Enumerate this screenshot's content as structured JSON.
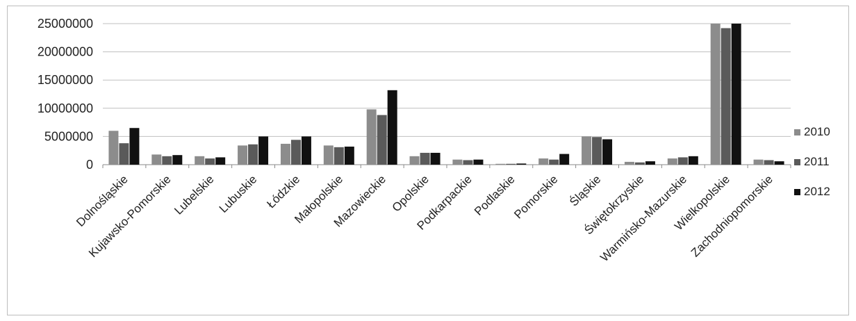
{
  "chart_data": {
    "type": "bar",
    "title": "",
    "xlabel": "",
    "ylabel": "",
    "ylim": [
      0,
      25000000
    ],
    "yticks": [
      0,
      5000000,
      10000000,
      15000000,
      20000000,
      25000000
    ],
    "ytick_labels": [
      "0",
      "5000000",
      "10000000",
      "15000000",
      "20000000",
      "25000000"
    ],
    "grid": true,
    "legend_position": "right",
    "categories": [
      "Dolnośląskie",
      "Kujawsko-Pomorskie",
      "Lubelskie",
      "Lubuskie",
      "Łódzkie",
      "Małopolskie",
      "Mazowieckie",
      "Opolskie",
      "Podkarpackie",
      "Podlaskie",
      "Pomorskie",
      "Śląskie",
      "Świętokrzyskie",
      "Warmińsko-Mazurskie",
      "Wielkopolskie",
      "Zachodniopomorskie"
    ],
    "series": [
      {
        "name": "2010",
        "color": "#8c8c8c",
        "values": [
          6000000,
          1800000,
          1500000,
          3400000,
          3700000,
          3400000,
          9800000,
          1500000,
          900000,
          150000,
          1100000,
          5000000,
          500000,
          1100000,
          25000000,
          900000
        ]
      },
      {
        "name": "2011",
        "color": "#5a5a5a",
        "values": [
          3800000,
          1500000,
          1100000,
          3600000,
          4400000,
          3100000,
          8800000,
          2100000,
          800000,
          150000,
          900000,
          4900000,
          400000,
          1300000,
          24200000,
          800000
        ]
      },
      {
        "name": "2012",
        "color": "#111111",
        "values": [
          6500000,
          1700000,
          1300000,
          5000000,
          5000000,
          3200000,
          13200000,
          2100000,
          900000,
          200000,
          1900000,
          4500000,
          600000,
          1500000,
          25000000,
          600000
        ]
      }
    ]
  }
}
